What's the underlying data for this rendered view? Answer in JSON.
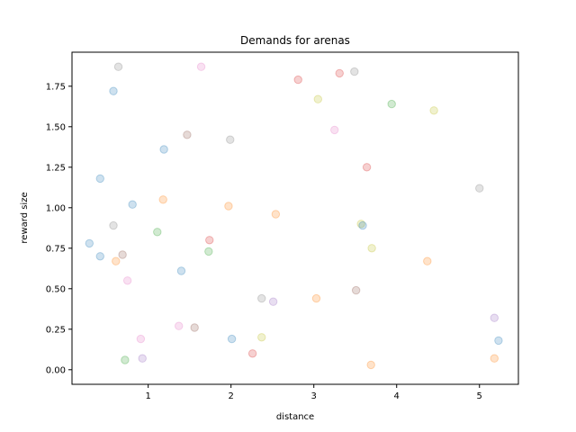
{
  "chart_data": {
    "type": "scatter",
    "title": "Demands for arenas",
    "xlabel": "distance",
    "ylabel": "reward size",
    "xlim": [
      0.08,
      5.47
    ],
    "ylim": [
      -0.09,
      1.96
    ],
    "grid": false,
    "x_ticks": [
      1,
      2,
      3,
      4,
      5
    ],
    "x_tick_labels": [
      "1",
      "2",
      "3",
      "4",
      "5"
    ],
    "y_ticks": [
      0.0,
      0.25,
      0.5,
      0.75,
      1.0,
      1.25,
      1.5,
      1.75
    ],
    "y_tick_labels": [
      "0.00",
      "0.25",
      "0.50",
      "0.75",
      "1.00",
      "1.25",
      "1.50",
      "1.75"
    ],
    "points": [
      {
        "x": 0.64,
        "y": 1.87,
        "color": "#7f7f7f"
      },
      {
        "x": 0.58,
        "y": 1.72,
        "color": "#1f77b4"
      },
      {
        "x": 0.42,
        "y": 1.18,
        "color": "#1f77b4"
      },
      {
        "x": 0.29,
        "y": 0.78,
        "color": "#1f77b4"
      },
      {
        "x": 0.42,
        "y": 0.7,
        "color": "#1f77b4"
      },
      {
        "x": 0.58,
        "y": 0.89,
        "color": "#7f7f7f"
      },
      {
        "x": 0.81,
        "y": 1.02,
        "color": "#1f77b4"
      },
      {
        "x": 0.69,
        "y": 0.71,
        "color": "#8c564b"
      },
      {
        "x": 0.61,
        "y": 0.67,
        "color": "#ff7f0e"
      },
      {
        "x": 0.75,
        "y": 0.55,
        "color": "#e377c2"
      },
      {
        "x": 1.11,
        "y": 0.85,
        "color": "#2ca02c"
      },
      {
        "x": 0.91,
        "y": 0.19,
        "color": "#e377c2"
      },
      {
        "x": 0.72,
        "y": 0.06,
        "color": "#2ca02c"
      },
      {
        "x": 0.93,
        "y": 0.07,
        "color": "#9467bd"
      },
      {
        "x": 1.19,
        "y": 1.36,
        "color": "#1f77b4"
      },
      {
        "x": 1.18,
        "y": 1.05,
        "color": "#ff7f0e"
      },
      {
        "x": 1.4,
        "y": 0.61,
        "color": "#1f77b4"
      },
      {
        "x": 1.37,
        "y": 0.27,
        "color": "#e377c2"
      },
      {
        "x": 1.47,
        "y": 1.45,
        "color": "#8c564b"
      },
      {
        "x": 1.64,
        "y": 1.87,
        "color": "#e377c2"
      },
      {
        "x": 1.74,
        "y": 0.8,
        "color": "#d62728"
      },
      {
        "x": 1.73,
        "y": 0.73,
        "color": "#2ca02c"
      },
      {
        "x": 1.56,
        "y": 0.26,
        "color": "#8c564b"
      },
      {
        "x": 1.99,
        "y": 1.42,
        "color": "#7f7f7f"
      },
      {
        "x": 1.97,
        "y": 1.01,
        "color": "#ff7f0e"
      },
      {
        "x": 2.01,
        "y": 0.19,
        "color": "#1f77b4"
      },
      {
        "x": 2.26,
        "y": 0.1,
        "color": "#d62728"
      },
      {
        "x": 2.37,
        "y": 0.44,
        "color": "#7f7f7f"
      },
      {
        "x": 2.37,
        "y": 0.2,
        "color": "#bcbd22"
      },
      {
        "x": 2.51,
        "y": 0.42,
        "color": "#9467bd"
      },
      {
        "x": 2.54,
        "y": 0.96,
        "color": "#ff7f0e"
      },
      {
        "x": 2.81,
        "y": 1.79,
        "color": "#d62728"
      },
      {
        "x": 3.05,
        "y": 1.67,
        "color": "#bcbd22"
      },
      {
        "x": 3.03,
        "y": 0.44,
        "color": "#ff7f0e"
      },
      {
        "x": 3.25,
        "y": 1.48,
        "color": "#e377c2"
      },
      {
        "x": 3.31,
        "y": 1.83,
        "color": "#d62728"
      },
      {
        "x": 3.49,
        "y": 1.84,
        "color": "#7f7f7f"
      },
      {
        "x": 3.51,
        "y": 0.49,
        "color": "#8c564b"
      },
      {
        "x": 3.57,
        "y": 0.9,
        "color": "#bcbd22"
      },
      {
        "x": 3.59,
        "y": 0.89,
        "color": "#1f77b4"
      },
      {
        "x": 3.64,
        "y": 1.25,
        "color": "#d62728"
      },
      {
        "x": 3.7,
        "y": 0.75,
        "color": "#bcbd22"
      },
      {
        "x": 3.69,
        "y": 0.03,
        "color": "#ff7f0e"
      },
      {
        "x": 3.94,
        "y": 1.64,
        "color": "#2ca02c"
      },
      {
        "x": 4.37,
        "y": 0.67,
        "color": "#ff7f0e"
      },
      {
        "x": 4.45,
        "y": 1.6,
        "color": "#bcbd22"
      },
      {
        "x": 5.0,
        "y": 1.12,
        "color": "#7f7f7f"
      },
      {
        "x": 5.18,
        "y": 0.32,
        "color": "#9467bd"
      },
      {
        "x": 5.23,
        "y": 0.18,
        "color": "#1f77b4"
      },
      {
        "x": 5.18,
        "y": 0.07,
        "color": "#ff7f0e"
      }
    ]
  }
}
